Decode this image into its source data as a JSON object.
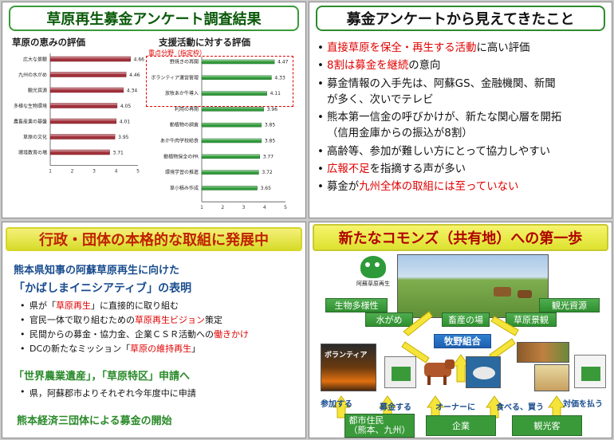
{
  "slide1": {
    "title": "草原再生募金アンケート調査結果",
    "chart_data": [
      {
        "type": "bar",
        "title": "草原の恵みの評価",
        "categories": [
          "広大な景観",
          "九州の水がめ",
          "観光資源",
          "多様な生物環境",
          "農畜産業の基盤",
          "草原の文化",
          "環境教育の場"
        ],
        "values": [
          4.66,
          4.46,
          4.34,
          4.05,
          4.01,
          3.95,
          3.71
        ],
        "xlim": [
          1,
          5
        ],
        "ticks": [
          "1",
          "2",
          "3",
          "4",
          "5"
        ],
        "orientation": "horizontal",
        "color": "#a0303a"
      },
      {
        "type": "bar",
        "title": "支援活動に対する評価",
        "categories": [
          "野焼きの再開",
          "ボランティア運営管理",
          "放牧あか牛導入",
          "利用の再開",
          "動植物の調査",
          "あか牛肉学校給食",
          "動植物保全のPR",
          "環境学習の推進",
          "草小積み作成"
        ],
        "values": [
          4.47,
          4.33,
          4.11,
          3.96,
          3.85,
          3.85,
          3.77,
          3.72,
          3.65
        ],
        "xlim": [
          1,
          5
        ],
        "ticks": [
          "1",
          "2",
          "3",
          "4",
          "5"
        ],
        "orientation": "horizontal",
        "color": "#2f9a3a",
        "annotation": "重点分野（指定枠）"
      }
    ]
  },
  "slide2": {
    "title": "募金アンケートから見えてきたこと",
    "bullets": [
      {
        "red1": "直接草原を保全・再生する活動",
        "rest1": "に高い評価"
      },
      {
        "red1": "8割は募金を継続",
        "rest1": "の意向"
      },
      {
        "line1": "募金情報の入手先は、阿蘇GS、金融機関、新聞",
        "line2": "が多く、次いでテレビ"
      },
      {
        "line1": "熊本第一信金の呼びかけが、新たな関心層を開拓",
        "line2": "（信用金庫からの振込が8割）"
      },
      {
        "line1": "高齢等、参加が難しい方にとって協力しやすい"
      },
      {
        "red1": "広報不足",
        "rest1": "を指摘する声が多い"
      },
      {
        "pre1": "募金が",
        "red1": "九州全体の取組には至っていない"
      }
    ]
  },
  "slide3": {
    "title": "行政・団体の本格的な取組に発展中",
    "lead": "熊本県知事の阿蘇草原再生に向けた",
    "sub": "「かばしまイニシアティブ」の表明",
    "items": [
      {
        "a": "県が「",
        "b": "草原再生",
        "c": "」に直接的に取り組む"
      },
      {
        "a": "官民一体で取り組むための",
        "b": "草原再生ビジョン",
        "c": "策定"
      },
      {
        "a": "民間からの募金・協力金、企業ＣＳＲ活動への",
        "b": "働きかけ",
        "c": ""
      },
      {
        "a": "DCの新たなミッション「",
        "b": "草原の維持再生",
        "c": "」"
      }
    ],
    "head2": "「世界農業遺産」，「草原特区」申請へ",
    "item2": "県，阿蘇郡市よりそれぞれ今年度中に申請",
    "head3": "熊本経済三団体による募金の開始"
  },
  "slide4": {
    "title": "新たなコモンズ（共有地）への第一歩",
    "logo_text": "阿蘇草原再生",
    "boxes": {
      "biodiv": "生物多様性",
      "tourism": "観光資源",
      "water": "水がめ",
      "livestock": "畜産の場",
      "landscape": "草原景観",
      "cooperative": "牧野組合",
      "volunteer": "ボランティア"
    },
    "labels": {
      "participate": "参加する",
      "donate": "募金する",
      "owner": "オーナーに",
      "eat": "食べる、買う",
      "pay": "対価を払う"
    },
    "bottom": {
      "citizens": "都市住民\n（熊本、九州）",
      "company": "企業",
      "tourists": "観光客"
    }
  }
}
